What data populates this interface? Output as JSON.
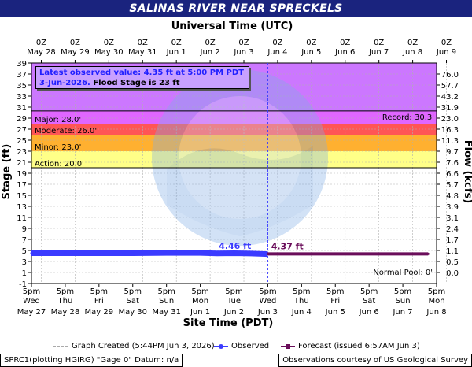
{
  "title": "SALINAS RIVER NEAR SPRECKELS",
  "top_axis_title": "Universal Time (UTC)",
  "bottom_axis_title": "Site Time (PDT)",
  "left_axis_title": "Stage (ft)",
  "right_axis_title": "Flow (kcfs)",
  "observed_box": {
    "line1": "Latest observed value: 4.35 ft at 5:00 PM PDT",
    "line2_date": "3-Jun-2026.",
    "line2_flood": "Flood Stage is 23 ft"
  },
  "legend": {
    "created": "Graph Created (5:44PM Jun 3, 2026)",
    "observed": "Observed",
    "forecast": "Forecast (issued 6:57AM Jun 3)"
  },
  "footer": {
    "left": "SPRC1(plotting HGIRG) \"Gage 0\" Datum: n/a",
    "right": "Observations courtesy of US Geological Survey"
  },
  "colors": {
    "observed": "#3b3bff",
    "forecast": "#6a0d5a",
    "record_band": "#cc77ff",
    "major_band": "#e066ff",
    "moderate_band": "#ff5555",
    "minor_band": "#ffb030",
    "action_band": "#ffff88",
    "title_bg": "#1a237e"
  },
  "chart_data": {
    "type": "line",
    "ylim": [
      -1,
      39
    ],
    "y_ticks": [
      -1,
      1,
      3,
      5,
      7,
      9,
      11,
      13,
      15,
      17,
      19,
      21,
      23,
      25,
      27,
      29,
      31,
      33,
      35,
      37,
      39
    ],
    "flow_ticks": [
      {
        "stage": 1,
        "label": "0.0"
      },
      {
        "stage": 3,
        "label": "0.5"
      },
      {
        "stage": 5,
        "label": "1.1"
      },
      {
        "stage": 7,
        "label": "1.7"
      },
      {
        "stage": 9,
        "label": "2.4"
      },
      {
        "stage": 11,
        "label": "3.1"
      },
      {
        "stage": 13,
        "label": "3.9"
      },
      {
        "stage": 15,
        "label": "4.8"
      },
      {
        "stage": 17,
        "label": "5.7"
      },
      {
        "stage": 19,
        "label": "6.6"
      },
      {
        "stage": 21,
        "label": "7.6"
      },
      {
        "stage": 23,
        "label": "9.7"
      },
      {
        "stage": 25,
        "label": "11.3"
      },
      {
        "stage": 27,
        "label": "16.3"
      },
      {
        "stage": 29,
        "label": "23.0"
      },
      {
        "stage": 31,
        "label": "31.9"
      },
      {
        "stage": 33,
        "label": "43.2"
      },
      {
        "stage": 35,
        "label": "57.7"
      },
      {
        "stage": 37,
        "label": "76.0"
      }
    ],
    "x_top_ticks": [
      {
        "hour": "0Z",
        "day": "May 28"
      },
      {
        "hour": "0Z",
        "day": "May 29"
      },
      {
        "hour": "0Z",
        "day": "May 30"
      },
      {
        "hour": "0Z",
        "day": "May 31"
      },
      {
        "hour": "0Z",
        "day": "Jun 1"
      },
      {
        "hour": "0Z",
        "day": "Jun 2"
      },
      {
        "hour": "0Z",
        "day": "Jun 3"
      },
      {
        "hour": "0Z",
        "day": "Jun 4"
      },
      {
        "hour": "0Z",
        "day": "Jun 5"
      },
      {
        "hour": "0Z",
        "day": "Jun 6"
      },
      {
        "hour": "0Z",
        "day": "Jun 7"
      },
      {
        "hour": "0Z",
        "day": "Jun 8"
      },
      {
        "hour": "0Z",
        "day": "Jun 9"
      }
    ],
    "x_bottom_ticks": [
      {
        "time": "5pm",
        "dow": "Wed",
        "date": "May 27"
      },
      {
        "time": "5pm",
        "dow": "Thu",
        "date": "May 28"
      },
      {
        "time": "5pm",
        "dow": "Fri",
        "date": "May 29"
      },
      {
        "time": "5pm",
        "dow": "Sat",
        "date": "May 30"
      },
      {
        "time": "5pm",
        "dow": "Sun",
        "date": "May 31"
      },
      {
        "time": "5pm",
        "dow": "Mon",
        "date": "Jun 1"
      },
      {
        "time": "5pm",
        "dow": "Tue",
        "date": "Jun 2"
      },
      {
        "time": "5pm",
        "dow": "Wed",
        "date": "Jun 3"
      },
      {
        "time": "5pm",
        "dow": "Thu",
        "date": "Jun 4"
      },
      {
        "time": "5pm",
        "dow": "Fri",
        "date": "Jun 5"
      },
      {
        "time": "5pm",
        "dow": "Sat",
        "date": "Jun 6"
      },
      {
        "time": "5pm",
        "dow": "Sun",
        "date": "Jun 7"
      },
      {
        "time": "5pm",
        "dow": "Mon",
        "date": "Jun 8"
      }
    ],
    "x_span_days": 12,
    "stages": [
      {
        "name": "Record",
        "value": 30.3,
        "label": "Record: 30.3'"
      },
      {
        "name": "Major",
        "value": 28.0,
        "label": "Major: 28.0'"
      },
      {
        "name": "Moderate",
        "value": 26.0,
        "label": "Moderate: 26.0'"
      },
      {
        "name": "Minor",
        "value": 23.0,
        "label": "Minor: 23.0'"
      },
      {
        "name": "Action",
        "value": 20.0,
        "label": "Action: 20.0'"
      },
      {
        "name": "Normal Pool",
        "value": 0,
        "label": "Normal Pool: 0'"
      }
    ],
    "now_day": 7.0,
    "series": [
      {
        "name": "Observed",
        "x_days": [
          0,
          1,
          2,
          3,
          4,
          5,
          5.5,
          6,
          6.5,
          7.0
        ],
        "values": [
          4.5,
          4.5,
          4.5,
          4.5,
          4.55,
          4.55,
          4.46,
          4.5,
          4.45,
          4.35
        ]
      },
      {
        "name": "Forecast",
        "x_days": [
          7.0,
          8,
          9,
          10,
          11,
          11.75
        ],
        "values": [
          4.37,
          4.37,
          4.37,
          4.37,
          4.37,
          4.37
        ]
      }
    ],
    "annotations": [
      {
        "text": "4.46 ft",
        "x_day": 5.55,
        "y": 4.46,
        "series": "Observed"
      },
      {
        "text": "4.37 ft",
        "x_day": 7.1,
        "y": 4.37,
        "series": "Forecast"
      }
    ]
  }
}
